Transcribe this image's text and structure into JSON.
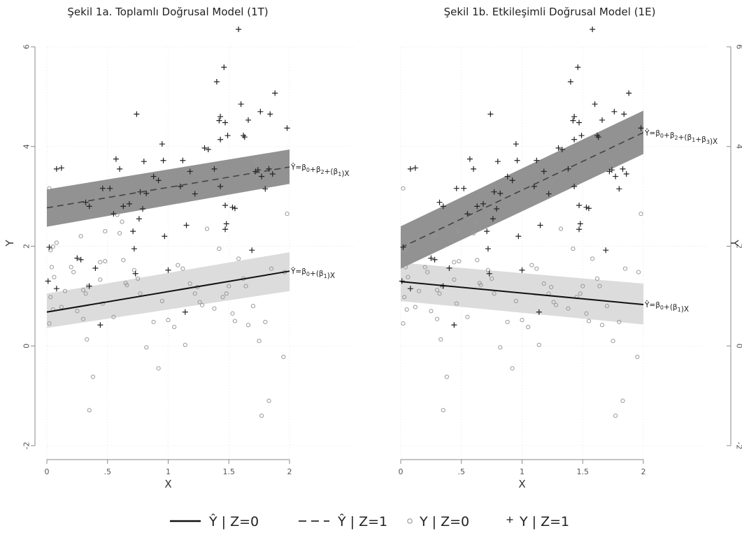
{
  "chart_data": [
    {
      "type": "scatter",
      "title": "Şekil 1a. Toplamlı Doğrusal Model (1T)",
      "xlabel": "X",
      "ylabel": "Y",
      "xlim": [
        0,
        2
      ],
      "ylim": [
        -2,
        6.3
      ],
      "x_ticks": [
        "0",
        ".5",
        "1",
        "1.5",
        "2"
      ],
      "y_ticks": [
        "-2",
        "0",
        "2",
        "4",
        "6"
      ],
      "ylabel_side": "left",
      "grid": "dotted",
      "fitted_lines": [
        {
          "series": "z0_fit",
          "style": "solid",
          "x": [
            0,
            2
          ],
          "y": [
            0.68,
            1.5
          ],
          "ci_lower": [
            0.36,
            1.1
          ],
          "ci_upper": [
            1.05,
            1.88
          ],
          "ci_color": "#dcdcdc",
          "label": "Ŷ=β0+(β1)X"
        },
        {
          "series": "z1_fit",
          "style": "dashed",
          "x": [
            0,
            2
          ],
          "y": [
            2.77,
            3.59
          ],
          "ci_lower": [
            2.39,
            3.25
          ],
          "ci_upper": [
            3.14,
            3.94
          ],
          "ci_color": "#8c8c8c",
          "label": "Ŷ=β0+β2+(β1)X"
        }
      ]
    },
    {
      "type": "scatter",
      "title": "Şekil 1b. Etkileşimli Doğrusal Model (1E)",
      "xlabel": "X",
      "ylabel": "Y",
      "xlim": [
        0,
        2
      ],
      "ylim": [
        -2,
        6.3
      ],
      "x_ticks": [
        "0",
        ".5",
        "1",
        "1.5",
        "2"
      ],
      "y_ticks": [
        "-2",
        "0",
        "2",
        "4",
        "6"
      ],
      "ylabel_side": "right",
      "grid": "dotted",
      "fitted_lines": [
        {
          "series": "z0_fit",
          "style": "solid",
          "x": [
            0,
            2
          ],
          "y": [
            1.29,
            0.83
          ],
          "ci_lower": [
            0.9,
            0.43
          ],
          "ci_upper": [
            1.67,
            1.25
          ],
          "ci_color": "#dcdcdc",
          "label": "Ŷ=β0+(β1)X"
        },
        {
          "series": "z1_fit",
          "style": "dashed",
          "x": [
            0,
            2
          ],
          "y": [
            1.97,
            4.28
          ],
          "ci_lower": [
            1.55,
            3.85
          ],
          "ci_upper": [
            2.4,
            4.72
          ],
          "ci_color": "#8c8c8c",
          "label": "Ŷ=β0+β2+(β1+β3)X"
        }
      ]
    }
  ],
  "points": {
    "z0": [
      [
        0.02,
        3.16
      ],
      [
        0.03,
        1.92
      ],
      [
        0.05,
        1.99
      ],
      [
        0.08,
        2.07
      ],
      [
        0.04,
        1.58
      ],
      [
        0.06,
        1.38
      ],
      [
        0.02,
        0.45
      ],
      [
        0.03,
        0.98
      ],
      [
        0.05,
        0.73
      ],
      [
        0.15,
        1.1
      ],
      [
        0.12,
        0.78
      ],
      [
        0.2,
        1.58
      ],
      [
        0.22,
        1.48
      ],
      [
        0.28,
        2.2
      ],
      [
        0.25,
        0.7
      ],
      [
        0.3,
        1.12
      ],
      [
        0.32,
        1.05
      ],
      [
        0.34,
        1.2
      ],
      [
        0.3,
        0.54
      ],
      [
        0.33,
        0.13
      ],
      [
        0.35,
        -1.29
      ],
      [
        0.38,
        -0.62
      ],
      [
        0.44,
        1.68
      ],
      [
        0.48,
        1.7
      ],
      [
        0.48,
        2.3
      ],
      [
        0.44,
        1.33
      ],
      [
        0.46,
        0.85
      ],
      [
        0.55,
        0.58
      ],
      [
        0.58,
        2.63
      ],
      [
        0.6,
        2.26
      ],
      [
        0.62,
        2.49
      ],
      [
        0.63,
        1.72
      ],
      [
        0.65,
        1.26
      ],
      [
        0.66,
        1.22
      ],
      [
        0.72,
        1.52
      ],
      [
        0.75,
        1.35
      ],
      [
        0.77,
        1.05
      ],
      [
        0.82,
        -0.03
      ],
      [
        0.88,
        0.48
      ],
      [
        0.92,
        -0.45
      ],
      [
        0.95,
        0.9
      ],
      [
        1.0,
        0.52
      ],
      [
        1.05,
        0.38
      ],
      [
        1.08,
        1.62
      ],
      [
        1.12,
        1.55
      ],
      [
        1.14,
        0.02
      ],
      [
        1.18,
        1.25
      ],
      [
        1.22,
        1.05
      ],
      [
        1.24,
        1.18
      ],
      [
        1.26,
        0.88
      ],
      [
        1.28,
        0.82
      ],
      [
        1.32,
        2.35
      ],
      [
        1.38,
        0.75
      ],
      [
        1.42,
        1.95
      ],
      [
        1.45,
        0.98
      ],
      [
        1.48,
        1.05
      ],
      [
        1.5,
        1.2
      ],
      [
        1.53,
        0.65
      ],
      [
        1.55,
        0.5
      ],
      [
        1.58,
        1.75
      ],
      [
        1.62,
        1.35
      ],
      [
        1.64,
        1.2
      ],
      [
        1.66,
        0.42
      ],
      [
        1.7,
        0.8
      ],
      [
        1.73,
        3.7
      ],
      [
        1.75,
        0.1
      ],
      [
        1.77,
        -1.4
      ],
      [
        1.8,
        0.48
      ],
      [
        1.83,
        -1.1
      ],
      [
        1.85,
        1.55
      ],
      [
        1.95,
        -0.22
      ],
      [
        1.96,
        1.48
      ],
      [
        1.98,
        2.65
      ]
    ],
    "z1": [
      [
        0.01,
        1.3
      ],
      [
        0.02,
        1.98
      ],
      [
        0.08,
        3.55
      ],
      [
        0.12,
        3.57
      ],
      [
        0.08,
        1.15
      ],
      [
        0.25,
        1.76
      ],
      [
        0.28,
        1.73
      ],
      [
        0.32,
        2.88
      ],
      [
        0.35,
        2.8
      ],
      [
        0.35,
        1.2
      ],
      [
        0.4,
        1.56
      ],
      [
        0.44,
        0.42
      ],
      [
        0.46,
        3.16
      ],
      [
        0.52,
        3.16
      ],
      [
        0.55,
        2.65
      ],
      [
        0.57,
        3.75
      ],
      [
        0.6,
        3.55
      ],
      [
        0.63,
        2.8
      ],
      [
        0.68,
        2.85
      ],
      [
        0.71,
        2.3
      ],
      [
        0.72,
        1.95
      ],
      [
        0.74,
        4.65
      ],
      [
        0.73,
        1.45
      ],
      [
        0.76,
        2.55
      ],
      [
        0.77,
        3.09
      ],
      [
        0.79,
        2.75
      ],
      [
        0.8,
        3.7
      ],
      [
        0.82,
        3.06
      ],
      [
        0.88,
        3.4
      ],
      [
        0.92,
        3.32
      ],
      [
        0.95,
        4.05
      ],
      [
        0.96,
        3.72
      ],
      [
        0.97,
        2.2
      ],
      [
        1.0,
        1.52
      ],
      [
        1.1,
        3.2
      ],
      [
        1.12,
        3.72
      ],
      [
        1.14,
        0.68
      ],
      [
        1.15,
        2.42
      ],
      [
        1.18,
        3.5
      ],
      [
        1.22,
        3.05
      ],
      [
        1.3,
        3.97
      ],
      [
        1.33,
        3.94
      ],
      [
        1.38,
        3.55
      ],
      [
        1.4,
        5.3
      ],
      [
        1.42,
        4.52
      ],
      [
        1.43,
        4.6
      ],
      [
        1.43,
        4.14
      ],
      [
        1.43,
        3.2
      ],
      [
        1.46,
        5.59
      ],
      [
        1.47,
        4.48
      ],
      [
        1.47,
        2.34
      ],
      [
        1.47,
        2.82
      ],
      [
        1.48,
        2.45
      ],
      [
        1.49,
        4.22
      ],
      [
        1.53,
        2.78
      ],
      [
        1.55,
        2.76
      ],
      [
        1.58,
        6.35
      ],
      [
        1.6,
        4.85
      ],
      [
        1.62,
        4.22
      ],
      [
        1.63,
        4.19
      ],
      [
        1.66,
        4.53
      ],
      [
        1.69,
        1.92
      ],
      [
        1.72,
        3.5
      ],
      [
        1.74,
        3.53
      ],
      [
        1.76,
        4.7
      ],
      [
        1.77,
        3.4
      ],
      [
        1.8,
        3.15
      ],
      [
        1.83,
        3.55
      ],
      [
        1.84,
        4.65
      ],
      [
        1.86,
        3.45
      ],
      [
        1.88,
        5.07
      ],
      [
        1.98,
        4.37
      ]
    ]
  },
  "legend": {
    "position": "bottom-center",
    "entries": [
      {
        "series": "z0_fit",
        "label": "Ŷ | Z=0",
        "symbol": "solid-line"
      },
      {
        "series": "z1_fit",
        "label": "Ŷ | Z=1",
        "symbol": "dashed-line"
      },
      {
        "series": "z0_points",
        "label": "Y | Z=0",
        "symbol": "open-circle"
      },
      {
        "series": "z1_points",
        "label": "Y | Z=1",
        "symbol": "plus"
      }
    ]
  }
}
